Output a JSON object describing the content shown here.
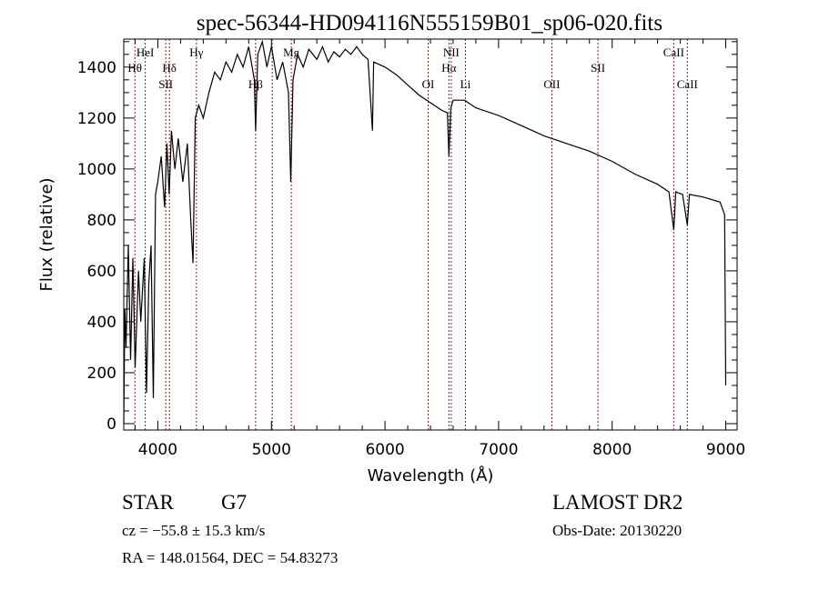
{
  "chart_data": {
    "type": "line",
    "title": "spec-56344-HD094116N555159B01_sp06-020.fits",
    "xlabel": "Wavelength (Å)",
    "ylabel": "Flux (relative)",
    "xlim": [
      3700,
      9100
    ],
    "ylim": [
      -25,
      1510
    ],
    "xticks": [
      4000,
      5000,
      6000,
      7000,
      8000,
      9000
    ],
    "yticks": [
      0,
      200,
      400,
      600,
      800,
      1000,
      1200,
      1400
    ],
    "grid": false,
    "series": [
      {
        "name": "spectrum",
        "x": [
          3700,
          3710,
          3720,
          3740,
          3760,
          3780,
          3800,
          3830,
          3850,
          3880,
          3900,
          3920,
          3940,
          3960,
          3980,
          4000,
          4030,
          4060,
          4080,
          4100,
          4120,
          4150,
          4180,
          4220,
          4260,
          4290,
          4310,
          4330,
          4360,
          4400,
          4450,
          4500,
          4550,
          4600,
          4650,
          4700,
          4750,
          4800,
          4850,
          4861,
          4880,
          4920,
          4960,
          5000,
          5050,
          5100,
          5150,
          5170,
          5190,
          5230,
          5280,
          5330,
          5400,
          5450,
          5500,
          5550,
          5600,
          5650,
          5700,
          5750,
          5800,
          5850,
          5890,
          5900,
          6000,
          6100,
          6200,
          6300,
          6400,
          6500,
          6550,
          6563,
          6580,
          6600,
          6700,
          6800,
          7000,
          7200,
          7400,
          7600,
          7800,
          8000,
          8200,
          8400,
          8500,
          8542,
          8560,
          8620,
          8662,
          8680,
          8800,
          8950,
          8990,
          9000
        ],
        "y": [
          0,
          450,
          300,
          700,
          250,
          650,
          220,
          600,
          400,
          650,
          120,
          550,
          700,
          100,
          900,
          950,
          1050,
          850,
          1100,
          900,
          1150,
          1000,
          1120,
          950,
          1100,
          800,
          630,
          1200,
          1250,
          1200,
          1300,
          1380,
          1350,
          1420,
          1380,
          1450,
          1400,
          1480,
          1350,
          1150,
          1450,
          1500,
          1400,
          1480,
          1350,
          1420,
          1300,
          950,
          1350,
          1450,
          1400,
          1470,
          1430,
          1480,
          1420,
          1460,
          1440,
          1470,
          1450,
          1480,
          1450,
          1430,
          1150,
          1420,
          1400,
          1370,
          1330,
          1290,
          1260,
          1230,
          1220,
          1050,
          1240,
          1270,
          1270,
          1240,
          1210,
          1170,
          1130,
          1100,
          1070,
          1030,
          980,
          940,
          910,
          760,
          910,
          900,
          780,
          900,
          890,
          870,
          820,
          150
        ]
      }
    ],
    "lines": [
      {
        "label": "Hθ",
        "wave": 3798,
        "row": 2
      },
      {
        "label": "HeI",
        "wave": 3889,
        "row": 1
      },
      {
        "label": "SII",
        "wave": 4070,
        "row": 3
      },
      {
        "label": "Hδ",
        "wave": 4102,
        "row": 2
      },
      {
        "label": "Hγ",
        "wave": 4340,
        "row": 1
      },
      {
        "label": "Hβ",
        "wave": 4861,
        "row": 3
      },
      {
        "label": "",
        "wave": 5007,
        "row": 0
      },
      {
        "label": "Mg",
        "wave": 5175,
        "row": 1
      },
      {
        "label": "OI",
        "wave": 6380,
        "row": 3
      },
      {
        "label": "Hα",
        "wave": 6563,
        "row": 2
      },
      {
        "label": "NII",
        "wave": 6583,
        "row": 1
      },
      {
        "label": "Li",
        "wave": 6708,
        "row": 3
      },
      {
        "label": "OII",
        "wave": 7469,
        "row": 3
      },
      {
        "label": "SII",
        "wave": 7875,
        "row": 2
      },
      {
        "label": "CaII",
        "wave": 8542,
        "row": 1
      },
      {
        "label": "CaII",
        "wave": 8662,
        "row": 3
      }
    ]
  },
  "info": {
    "class": "STAR",
    "subclass": "G7",
    "cz": "cz = −55.8 ± 15.3 km/s",
    "coords": "RA = 148.01564, DEC =  54.83273",
    "survey": "LAMOST DR2",
    "obs_date": "Obs-Date: 20130220"
  },
  "colors": {
    "line_marker": "#8b1a1a",
    "spectrum": "#000000"
  }
}
